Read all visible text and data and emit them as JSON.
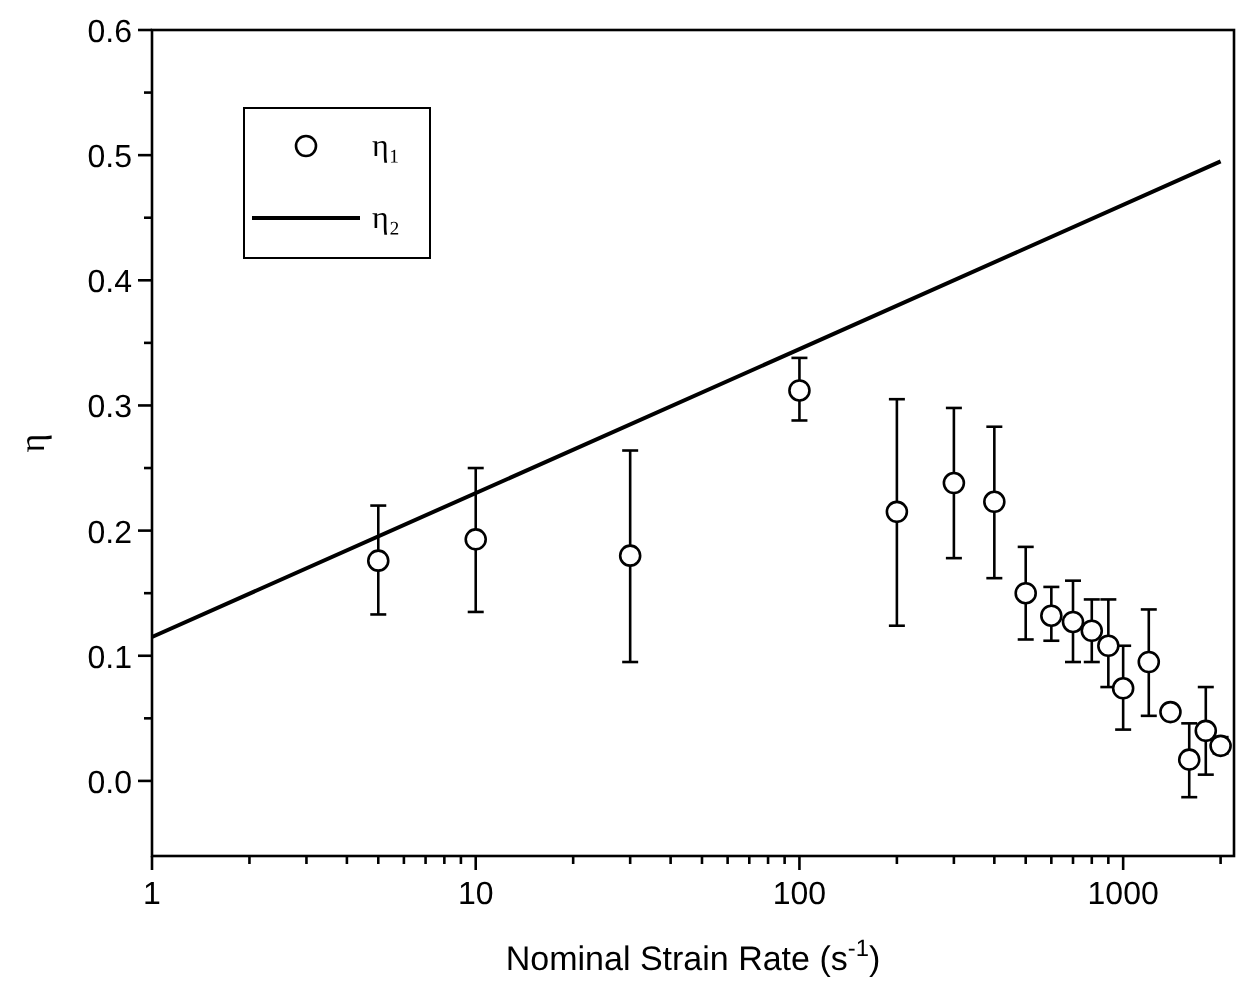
{
  "chart_data": {
    "type": "scatter",
    "xlabel": "Nominal Strain Rate (s$^{-1}$)",
    "ylabel": "η",
    "log": "x",
    "xlim": [
      1,
      2200
    ],
    "ylim": [
      -0.06,
      0.6
    ],
    "xticks": [
      1,
      {
        "value": 2,
        "label": null
      },
      {
        "value": 3,
        "label": null
      },
      {
        "value": 4,
        "label": null
      },
      {
        "value": 5,
        "label": null
      },
      {
        "value": 6,
        "label": null
      },
      {
        "value": 7,
        "label": null
      },
      {
        "value": 8,
        "label": null
      },
      {
        "value": 9,
        "label": null
      },
      10,
      {
        "value": 20,
        "label": null
      },
      {
        "value": 30,
        "label": null
      },
      {
        "value": 40,
        "label": null
      },
      {
        "value": 50,
        "label": null
      },
      {
        "value": 60,
        "label": null
      },
      {
        "value": 70,
        "label": null
      },
      {
        "value": 80,
        "label": null
      },
      {
        "value": 90,
        "label": null
      },
      100,
      {
        "value": 200,
        "label": null
      },
      {
        "value": 300,
        "label": null
      },
      {
        "value": 400,
        "label": null
      },
      {
        "value": 500,
        "label": null
      },
      {
        "value": 600,
        "label": null
      },
      {
        "value": 700,
        "label": null
      },
      {
        "value": 800,
        "label": null
      },
      {
        "value": 900,
        "label": null
      },
      1000,
      {
        "value": 2000,
        "label": null
      }
    ],
    "yticks": [
      {
        "value": 0,
        "label": "0.0"
      },
      {
        "value": 0.05,
        "label": null
      },
      0.1,
      {
        "value": 0.15,
        "label": null
      },
      0.2,
      {
        "value": 0.25,
        "label": null
      },
      0.3,
      {
        "value": 0.35,
        "label": null
      },
      0.4,
      {
        "value": 0.45,
        "label": null
      },
      0.5,
      {
        "value": 0.55,
        "label": null
      },
      0.6
    ],
    "legend": "top left",
    "grid": false,
    "series": [
      {
        "name": "η₁",
        "marker": "circle",
        "color": "#000000",
        "x": [
          5,
          10,
          30,
          100,
          200,
          300,
          400,
          500,
          600,
          700,
          800,
          900,
          1000,
          1200,
          1400,
          1600,
          1800,
          2000
        ],
        "values": [
          0.176,
          0.193,
          0.18,
          0.312,
          0.215,
          0.238,
          0.223,
          0.15,
          0.132,
          0.127,
          0.12,
          0.108,
          0.074,
          0.095,
          0.055,
          0.017,
          0.04,
          0.028
        ],
        "errors": [
          [
            0.133,
            0.22
          ],
          [
            0.135,
            0.25
          ],
          [
            0.095,
            0.264
          ],
          [
            0.288,
            0.338
          ],
          [
            0.124,
            0.305
          ],
          [
            0.178,
            0.298
          ],
          [
            0.162,
            0.283
          ],
          [
            0.113,
            0.187
          ],
          [
            0.112,
            0.155
          ],
          [
            0.095,
            0.16
          ],
          [
            0.095,
            0.145
          ],
          [
            0.075,
            0.145
          ],
          [
            0.041,
            0.108
          ],
          [
            0.052,
            0.137
          ],
          [
            0.05,
            0.06
          ],
          [
            -0.013,
            0.046
          ],
          [
            0.005,
            0.075
          ],
          [
            0.022,
            0.035
          ]
        ]
      },
      {
        "name": "η₂",
        "type": "line",
        "marker": "none",
        "line_style": "solid",
        "color": "#000000",
        "x": [
          1,
          100,
          2000
        ],
        "values": [
          0.115,
          0.345,
          0.495
        ]
      }
    ]
  }
}
